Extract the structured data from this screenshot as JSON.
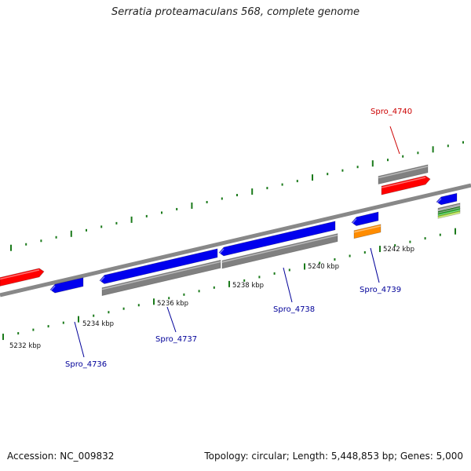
{
  "title": "Serratia proteamaculans 568, complete genome",
  "footer": {
    "accession": "Accession: NC_009832",
    "stats": "Topology: circular; Length: 5,448,853 bp; Genes: 5,000"
  },
  "colors": {
    "forward_cds": "#ff0000",
    "reverse_cds": "#0000ee",
    "gene": "#808080",
    "other_feature": "#ff8c00",
    "tick": "#1a7a1a",
    "backbone": "#888888",
    "label_forward": "#cc0000",
    "label_reverse": "#000099"
  },
  "scale_labels": [
    "5232 kbp",
    "5234 kbp",
    "5236 kbp",
    "5238 kbp",
    "5240 kbp",
    "5242 kbp"
  ],
  "gene_labels": [
    {
      "name": "Spro_4736",
      "strand": "reverse"
    },
    {
      "name": "Spro_4737",
      "strand": "reverse"
    },
    {
      "name": "Spro_4738",
      "strand": "reverse"
    },
    {
      "name": "Spro_4739",
      "strand": "reverse"
    },
    {
      "name": "Spro_4740",
      "strand": "forward"
    }
  ]
}
